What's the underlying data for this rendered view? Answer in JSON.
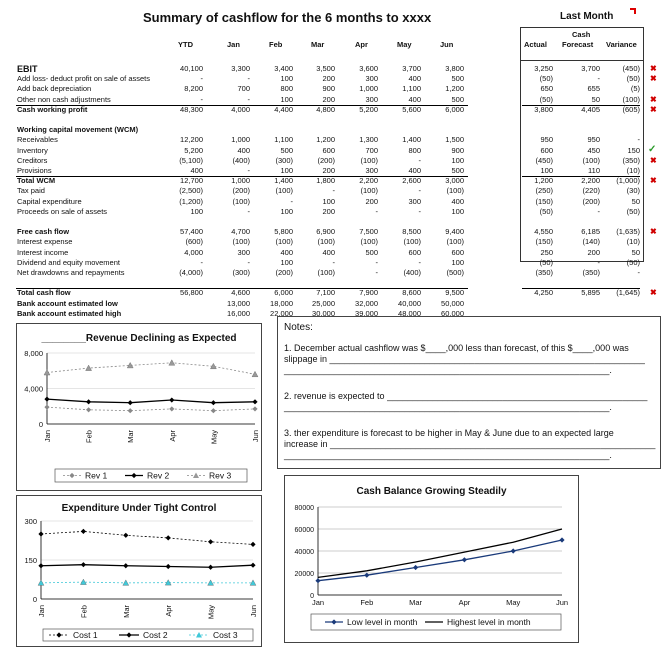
{
  "title": "Summary of cashflow for the 6 months to xxxx",
  "last_month_title": "Last Month",
  "columns": [
    "YTD",
    "Jan",
    "Feb",
    "Mar",
    "Apr",
    "May",
    "Jun"
  ],
  "lm_columns": [
    "Actual",
    "Cash Forecast",
    "Variance"
  ],
  "lm_col_cash": "Cash",
  "lm_col_forecast": "Forecast",
  "rows": [
    {
      "label": "EBIT",
      "vals": [
        "40,100",
        "3,300",
        "3,400",
        "3,500",
        "3,600",
        "3,700",
        "3,800"
      ],
      "lm": [
        "3,250",
        "3,700",
        "(450)"
      ],
      "mark": "x",
      "style": "ebit"
    },
    {
      "label": "Add loss-  deduct profit on sale of assets",
      "vals": [
        "-",
        "-",
        "100",
        "200",
        "300",
        "400",
        "500"
      ],
      "lm": [
        "(50)",
        "-",
        "(50)"
      ],
      "mark": "x"
    },
    {
      "label": "Add back depreciation",
      "vals": [
        "8,200",
        "700",
        "800",
        "900",
        "1,000",
        "1,100",
        "1,200"
      ],
      "lm": [
        "650",
        "655",
        "(5)"
      ],
      "mark": ""
    },
    {
      "label": "Other non cash adjustments",
      "vals": [
        "-",
        "-",
        "100",
        "200",
        "300",
        "400",
        "500"
      ],
      "lm": [
        "(50)",
        "50",
        "(100)"
      ],
      "mark": "x"
    },
    {
      "label": "Cash working profit",
      "vals": [
        "48,300",
        "4,000",
        "4,400",
        "4,800",
        "5,200",
        "5,600",
        "6,000"
      ],
      "lm": [
        "3,800",
        "4,405",
        "(605)"
      ],
      "mark": "x",
      "style": "total"
    },
    {
      "label": "",
      "vals": [
        "",
        "",
        "",
        "",
        "",
        "",
        ""
      ],
      "lm": [
        "",
        "",
        ""
      ],
      "mark": ""
    },
    {
      "label": "Working capital movement (WCM)",
      "vals": [
        "",
        "",
        "",
        "",
        "",
        "",
        ""
      ],
      "lm": [
        "",
        "",
        ""
      ],
      "mark": "",
      "style": "bold"
    },
    {
      "label": "Receivables",
      "vals": [
        "12,200",
        "1,000",
        "1,100",
        "1,200",
        "1,300",
        "1,400",
        "1,500"
      ],
      "lm": [
        "950",
        "950",
        "-"
      ],
      "mark": ""
    },
    {
      "label": "Inventory",
      "vals": [
        "5,200",
        "400",
        "500",
        "600",
        "700",
        "800",
        "900"
      ],
      "lm": [
        "600",
        "450",
        "150"
      ],
      "mark": "ok"
    },
    {
      "label": "Creditors",
      "vals": [
        "(5,100)",
        "(400)",
        "(300)",
        "(200)",
        "(100)",
        "-",
        "100"
      ],
      "lm": [
        "(450)",
        "(100)",
        "(350)"
      ],
      "mark": "x"
    },
    {
      "label": "Provisions",
      "vals": [
        "400",
        "-",
        "100",
        "200",
        "300",
        "400",
        "500"
      ],
      "lm": [
        "100",
        "110",
        "(10)"
      ],
      "mark": ""
    },
    {
      "label": "Total WCM",
      "vals": [
        "12,700",
        "1,000",
        "1,400",
        "1,800",
        "2,200",
        "2,600",
        "3,000"
      ],
      "lm": [
        "1,200",
        "2,200",
        "(1,000)"
      ],
      "mark": "x",
      "style": "total"
    },
    {
      "label": "Tax paid",
      "vals": [
        "(2,500)",
        "(200)",
        "(100)",
        "-",
        "(100)",
        "-",
        "(100)"
      ],
      "lm": [
        "(250)",
        "(220)",
        "(30)"
      ],
      "mark": ""
    },
    {
      "label": "Capital expenditure",
      "vals": [
        "(1,200)",
        "(100)",
        "-",
        "100",
        "200",
        "300",
        "400"
      ],
      "lm": [
        "(150)",
        "(200)",
        "50"
      ],
      "mark": ""
    },
    {
      "label": "Proceeds on sale of assets",
      "vals": [
        "100",
        "-",
        "100",
        "200",
        "-",
        "-",
        "100"
      ],
      "lm": [
        "(50)",
        "-",
        "(50)"
      ],
      "mark": ""
    },
    {
      "label": "",
      "vals": [
        "",
        "",
        "",
        "",
        "",
        "",
        ""
      ],
      "lm": [
        "",
        "",
        ""
      ],
      "mark": ""
    },
    {
      "label": "Free cash flow",
      "vals": [
        "57,400",
        "4,700",
        "5,800",
        "6,900",
        "7,500",
        "8,500",
        "9,400"
      ],
      "lm": [
        "4,550",
        "6,185",
        "(1,635)"
      ],
      "mark": "x",
      "style": "bold"
    },
    {
      "label": "Interest expense",
      "vals": [
        "(600)",
        "(100)",
        "(100)",
        "(100)",
        "(100)",
        "(100)",
        "(100)"
      ],
      "lm": [
        "(150)",
        "(140)",
        "(10)"
      ],
      "mark": ""
    },
    {
      "label": "Interest income",
      "vals": [
        "4,000",
        "300",
        "400",
        "400",
        "500",
        "600",
        "600"
      ],
      "lm": [
        "250",
        "200",
        "50"
      ],
      "mark": ""
    },
    {
      "label": "Dividend and equity movement",
      "vals": [
        "-",
        "-",
        "100",
        "-",
        "-",
        "-",
        "100"
      ],
      "lm": [
        "(50)",
        "-",
        "(50)"
      ],
      "mark": ""
    },
    {
      "label": "Net drawdowns and repayments",
      "vals": [
        "(4,000)",
        "(300)",
        "(200)",
        "(100)",
        "-",
        "(400)",
        "(500)"
      ],
      "lm": [
        "(350)",
        "(350)",
        "-"
      ],
      "mark": ""
    },
    {
      "label": "",
      "vals": [
        "",
        "",
        "",
        "",
        "",
        "",
        ""
      ],
      "lm": [
        "",
        "",
        ""
      ],
      "mark": ""
    },
    {
      "label": "Total cash flow",
      "vals": [
        "56,800",
        "4,600",
        "6,000",
        "7,100",
        "7,900",
        "8,600",
        "9,500"
      ],
      "lm": [
        "4,250",
        "5,895",
        "(1,645)"
      ],
      "mark": "x",
      "style": "total"
    },
    {
      "label": "Bank account estimated low",
      "vals": [
        "",
        "13,000",
        "18,000",
        "25,000",
        "32,000",
        "40,000",
        "50,000"
      ],
      "lm": [
        "",
        "",
        ""
      ],
      "mark": "",
      "style": "bold"
    },
    {
      "label": "Bank account estimated high",
      "vals": [
        "",
        "16,000",
        "22,000",
        "30,000",
        "39,000",
        "48,000",
        "60,000"
      ],
      "lm": [
        "",
        "",
        ""
      ],
      "mark": "",
      "style": "bold"
    }
  ],
  "notes": {
    "heading": "Notes:",
    "line1a": "1. December actual cashflow was $____,000 less than forecast, of this $____,000 was",
    "line1b": "slippage in _______________________________________________________________",
    "line1c": "_________________________________________________________________.",
    "line2a": "2. revenue is expected to ____________________________________________________",
    "line2b": "_________________________________________________________________.",
    "line3a": "3. ther expenditure is forecast to be higher in May & June due to an expected large",
    "line3b": "increase in _________________________________________________________________",
    "line3c": "_________________________________________________________________."
  },
  "chart_data": [
    {
      "type": "line",
      "title": "________Revenue Declining as Expected",
      "categories": [
        "Jan",
        "Feb",
        "Mar",
        "Apr",
        "May",
        "Jun"
      ],
      "ylim": [
        0,
        8000
      ],
      "yticks": [
        "0",
        "4,000",
        "8,000"
      ],
      "series": [
        {
          "name": "Rev 1",
          "values": [
            1900,
            1600,
            1500,
            1700,
            1500,
            1700
          ],
          "color": "#888888",
          "marker": "diamond",
          "dashed": true
        },
        {
          "name": "Rev 2",
          "values": [
            2800,
            2500,
            2400,
            2700,
            2400,
            2500
          ],
          "color": "#000000",
          "marker": "diamond",
          "dashed": false
        },
        {
          "name": "Rev 3",
          "values": [
            5800,
            6300,
            6600,
            6900,
            6500,
            5600
          ],
          "color": "#888888",
          "marker": "triangle",
          "dashed": true
        }
      ]
    },
    {
      "type": "line",
      "title": "Expenditure Under Tight Control",
      "categories": [
        "Jan",
        "Feb",
        "Mar",
        "Apr",
        "May",
        "Jun"
      ],
      "ylim": [
        0,
        300
      ],
      "yticks": [
        "0",
        "150",
        "300"
      ],
      "series": [
        {
          "name": "Cost 1",
          "values": [
            250,
            260,
            245,
            235,
            220,
            210
          ],
          "color": "#000000",
          "marker": "diamond",
          "dashed": true
        },
        {
          "name": "Cost 2",
          "values": [
            128,
            132,
            128,
            125,
            122,
            130
          ],
          "color": "#000000",
          "marker": "diamond",
          "dashed": false
        },
        {
          "name": "Cost 3",
          "values": [
            62,
            65,
            62,
            63,
            62,
            62
          ],
          "color": "#40c8d8",
          "marker": "triangle",
          "dashed": true
        }
      ]
    },
    {
      "type": "line",
      "title": "Cash Balance Growing Steadily",
      "categories": [
        "Jan",
        "Feb",
        "Mar",
        "Apr",
        "May",
        "Jun"
      ],
      "ylim": [
        0,
        80000
      ],
      "yticks": [
        "0",
        "20000",
        "40000",
        "60000",
        "80000"
      ],
      "series": [
        {
          "name": "Low level in month",
          "values": [
            13000,
            18000,
            25000,
            32000,
            40000,
            50000
          ],
          "color": "#1a3a7a",
          "marker": "diamond",
          "dashed": false
        },
        {
          "name": "Highest level in month",
          "values": [
            16000,
            22000,
            30000,
            39000,
            48000,
            60000
          ],
          "color": "#000000",
          "marker": "none",
          "dashed": false
        }
      ]
    }
  ]
}
